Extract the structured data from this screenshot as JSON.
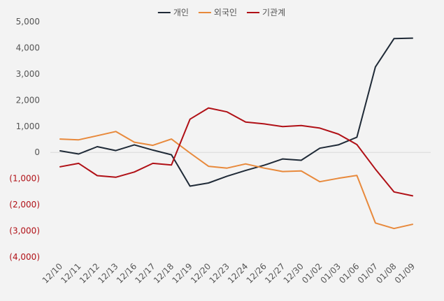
{
  "chart_data": {
    "type": "line",
    "title": "",
    "xlabel": "",
    "ylabel": "",
    "ylim": [
      -4000,
      5000
    ],
    "y_ticks": [
      5000,
      4000,
      3000,
      2000,
      1000,
      0,
      -1000,
      -2000,
      -3000,
      -4000
    ],
    "y_tick_labels": [
      "5,000",
      "4,000",
      "3,000",
      "2,000",
      "1,000",
      "0",
      "(1,000)",
      "(2,000)",
      "(3,000)",
      "(4,000)"
    ],
    "grid": false,
    "legend": "top-center",
    "categories": [
      "12/10",
      "12/11",
      "12/12",
      "12/13",
      "12/16",
      "12/17",
      "12/18",
      "12/19",
      "12/20",
      "12/23",
      "12/24",
      "12/26",
      "12/27",
      "12/30",
      "01/02",
      "01/03",
      "01/06",
      "01/07",
      "01/08",
      "01/09"
    ],
    "series": [
      {
        "name": "개인",
        "color": "#1f2a37",
        "values": [
          60,
          -60,
          220,
          70,
          290,
          90,
          -90,
          -1290,
          -1170,
          -910,
          -690,
          -490,
          -250,
          -300,
          160,
          290,
          580,
          3270,
          4350,
          4370
        ]
      },
      {
        "name": "외국인",
        "color": "#e8893b",
        "values": [
          510,
          480,
          640,
          800,
          390,
          270,
          510,
          -20,
          -530,
          -600,
          -440,
          -600,
          -730,
          -710,
          -1120,
          -990,
          -880,
          -2700,
          -2910,
          -2750
        ]
      },
      {
        "name": "기관계",
        "color": "#b01016",
        "values": [
          -550,
          -420,
          -890,
          -950,
          -750,
          -420,
          -480,
          1270,
          1700,
          1550,
          1160,
          1090,
          990,
          1030,
          930,
          700,
          300,
          -640,
          -1510,
          -1660
        ]
      }
    ]
  }
}
